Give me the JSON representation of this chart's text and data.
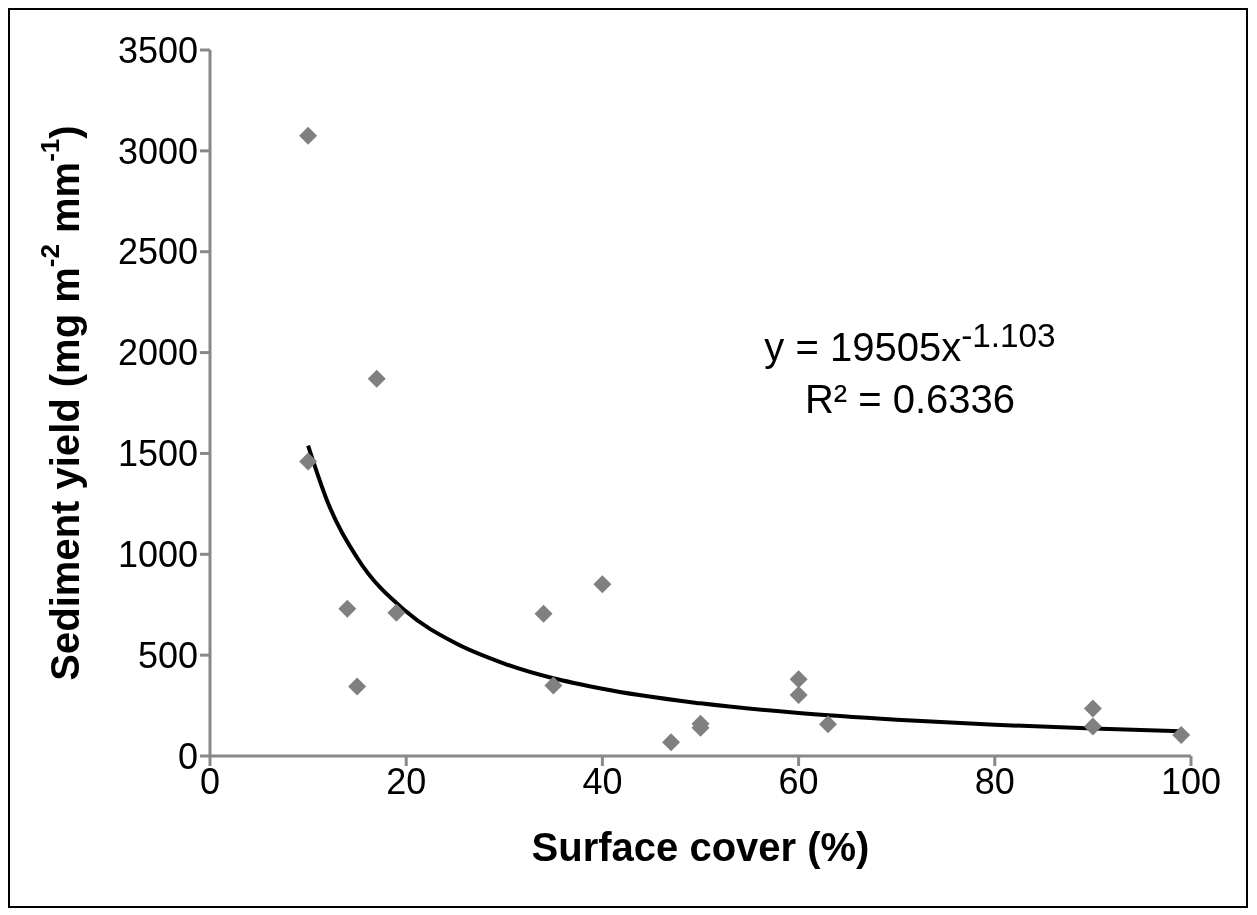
{
  "chart_data": {
    "type": "scatter",
    "xlabel": "Surface cover (%)",
    "ylabel": "Sediment yield (mg m$^{-2}$ mm$^{-1}$)",
    "xlim": [
      0,
      100
    ],
    "xticks": [
      0,
      20,
      40,
      60,
      80,
      100
    ],
    "ylim": [
      0,
      3500
    ],
    "yticks": [
      0,
      500,
      1000,
      1500,
      2000,
      2500,
      3000,
      3500
    ],
    "marker": "diamond",
    "series": [
      {
        "color": "#808080",
        "x": [
          10,
          10,
          14,
          15,
          17,
          19,
          34,
          35,
          40,
          47,
          50,
          50,
          60,
          60,
          63,
          90,
          90,
          99
        ],
        "values": [
          3075,
          1460,
          730,
          345,
          1870,
          710,
          705,
          350,
          852,
          68,
          160,
          140,
          381,
          303,
          157,
          235,
          146,
          104
        ]
      },
      {
        "type": "line",
        "marker": "none",
        "color": "#000000",
        "x": [
          10,
          12,
          15,
          20,
          25,
          30,
          40,
          50,
          60,
          70,
          80,
          90,
          99
        ],
        "values": [
          1539,
          1258,
          983,
          716,
          560,
          458,
          333,
          261,
          213,
          180,
          155,
          136,
          123
        ]
      }
    ],
    "annotations": [
      "y = 19505x$^{-1.103}$",
      "R² = 0.6336"
    ]
  }
}
